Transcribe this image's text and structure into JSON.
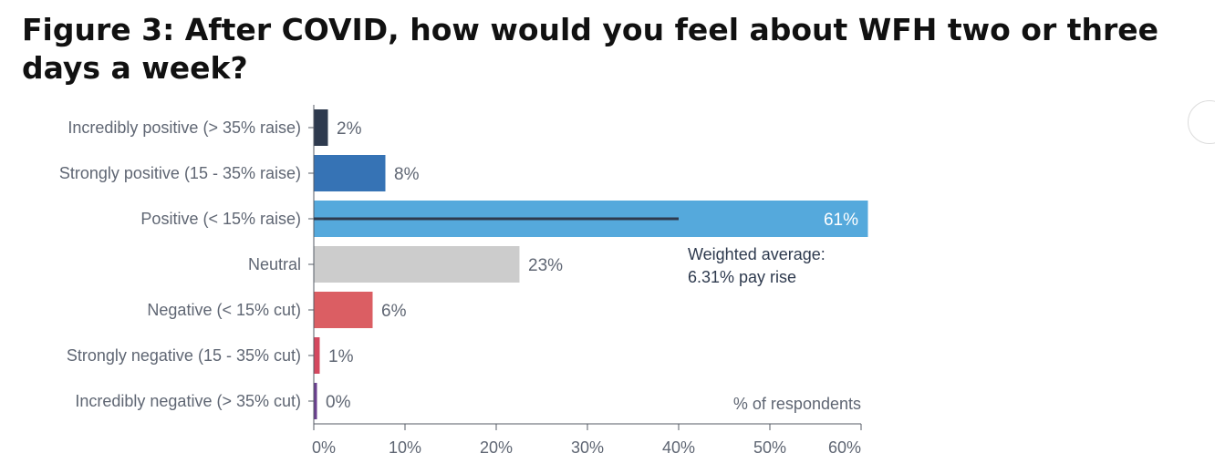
{
  "title": "Figure 3: After COVID, how would you feel about WFH two or three days a week?",
  "chart_data": {
    "type": "bar",
    "orientation": "horizontal",
    "categories": [
      "Incredibly positive (> 35% raise)",
      "Strongly positive (15 - 35% raise)",
      "Positive (< 15% raise)",
      "Neutral",
      "Negative (< 15% cut)",
      "Strongly negative (15 - 35% cut)",
      "Incredibly negative (> 35% cut)"
    ],
    "values": [
      1.5,
      7.8,
      60.7,
      22.5,
      6.4,
      0.6,
      0.3
    ],
    "value_labels": [
      "2%",
      "8%",
      "61%",
      "23%",
      "6%",
      "1%",
      "0%"
    ],
    "colors": [
      "#2e3a4e",
      "#3673b5",
      "#55a9dc",
      "#cccccc",
      "#db5e63",
      "#d4485f",
      "#6b3f8f"
    ],
    "xlabel": "% of respondents",
    "xlim": [
      0,
      60
    ],
    "xticks": [
      0,
      10,
      20,
      30,
      40,
      50,
      60
    ],
    "xtick_labels": [
      "0%",
      "10%",
      "20%",
      "30%",
      "40%",
      "50%",
      "60%"
    ],
    "grid": false,
    "annotation": {
      "line1": "Weighted average:",
      "line2": "6.31% pay rise",
      "marker_value": 40,
      "color": "#2e3a4e"
    }
  }
}
